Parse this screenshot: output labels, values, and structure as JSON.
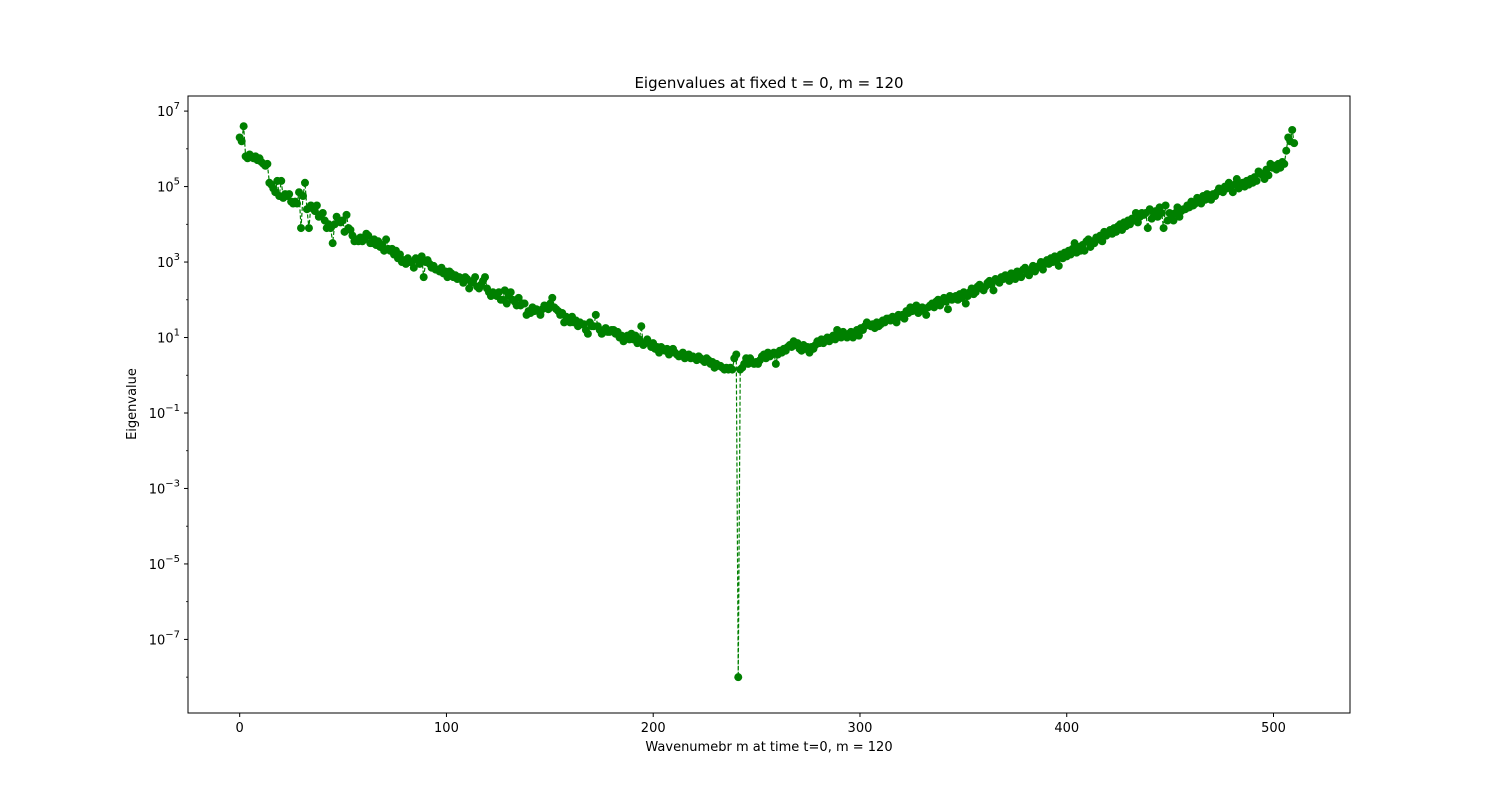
{
  "chart_data": {
    "type": "scatter",
    "title": "Eigenvalues at fixed t = 0, m = 120",
    "xlabel": "Wavenumebr m at time t=0, m = 120",
    "ylabel": "Eigenvalue",
    "xscale": "linear",
    "yscale": "log",
    "xlim": [
      -25,
      537
    ],
    "ylim_log10": [
      -8.95,
      7.4
    ],
    "x_ticks": [
      0,
      100,
      200,
      300,
      400,
      500
    ],
    "x_tick_labels": [
      "0",
      "100",
      "200",
      "300",
      "400",
      "500"
    ],
    "y_tick_exponents": [
      -7,
      -5,
      -3,
      -1,
      1,
      3,
      5,
      7
    ],
    "y_tick_labels": [
      "10",
      "10",
      "10",
      "10",
      "10",
      "10",
      "10",
      "10"
    ],
    "y_tick_label_exponents": [
      "−7",
      "−5",
      "−3",
      "−1",
      "1",
      "3",
      "5",
      "7"
    ],
    "grid": false,
    "legend": "none",
    "marker": "circle",
    "line_style": "dashed",
    "color": "#008000",
    "series": [
      {
        "x_start": 0,
        "x_end": 510,
        "log10_values": [
          6.3,
          6.2,
          6.6,
          5.8,
          5.75,
          5.85,
          5.8,
          5.75,
          5.8,
          5.7,
          5.75,
          5.65,
          5.6,
          5.55,
          5.6,
          5.1,
          5.05,
          4.95,
          4.85,
          5.15,
          4.75,
          5.15,
          4.7,
          4.8,
          4.75,
          4.8,
          4.6,
          4.55,
          4.6,
          4.55,
          4.85,
          3.9,
          4.75,
          5.1,
          4.4,
          3.9,
          4.5,
          4.45,
          4.35,
          4.5,
          4.2,
          4.25,
          4.3,
          4.1,
          3.9,
          4.0,
          3.9,
          3.5,
          4.0,
          4.2,
          4.1,
          4.05,
          4.1,
          3.8,
          4.25,
          3.9,
          3.85,
          3.7,
          3.55,
          3.6,
          3.55,
          3.65,
          3.55,
          3.6,
          3.75,
          3.7,
          3.5,
          3.5,
          3.6,
          3.45,
          3.55,
          3.4,
          3.45,
          3.3,
          3.6,
          3.35,
          3.3,
          3.35,
          3.2,
          3.3,
          3.1,
          3.2,
          3.0,
          3.05,
          2.95,
          3.1,
          3.0,
          3.0,
          2.85,
          3.1,
          3.05,
          2.95,
          3.15,
          2.6,
          3.0,
          3.05,
          2.95,
          2.85,
          2.9,
          2.8,
          2.8,
          2.75,
          2.85,
          2.7,
          2.75,
          2.6,
          2.75,
          2.7,
          2.6,
          2.65,
          2.55,
          2.6,
          2.55,
          2.45,
          2.6,
          2.55,
          2.3,
          2.45,
          2.5,
          2.6,
          2.35,
          2.3,
          2.4,
          2.5,
          2.6,
          2.3,
          2.2,
          2.1,
          2.2,
          2.15,
          2.1,
          2.2,
          2.0,
          2.0,
          2.25,
          1.9,
          2.1,
          2.2,
          2.0,
          1.95,
          1.85,
          2.05,
          1.85,
          1.9,
          1.9,
          1.6,
          1.7,
          1.65,
          1.8,
          1.7,
          1.75,
          1.7,
          1.6,
          1.75,
          1.85,
          1.8,
          1.75,
          1.9,
          2.05,
          1.8,
          1.75,
          1.7,
          1.6,
          1.65,
          1.4,
          1.55,
          1.5,
          1.4,
          1.55,
          1.4,
          1.45,
          1.3,
          1.4,
          1.35,
          1.35,
          1.2,
          1.1,
          1.4,
          1.3,
          1.3,
          1.6,
          1.3,
          1.2,
          1.1,
          1.15,
          1.25,
          1.15,
          1.15,
          1.2,
          1.2,
          1.1,
          1.15,
          1.0,
          1.05,
          0.9,
          1.0,
          1.05,
          0.95,
          1.1,
          0.95,
          1.05,
          0.85,
          0.95,
          1.3,
          0.8,
          0.85,
          0.95,
          0.85,
          0.75,
          0.85,
          0.7,
          0.75,
          0.6,
          0.75,
          0.7,
          0.65,
          0.7,
          0.55,
          0.6,
          0.7,
          0.6,
          0.55,
          0.5,
          0.55,
          0.6,
          0.45,
          0.5,
          0.55,
          0.45,
          0.5,
          0.45,
          0.4,
          0.5,
          0.45,
          0.4,
          0.35,
          0.45,
          0.4,
          0.3,
          0.35,
          0.2,
          0.3,
          0.25,
          0.25,
          0.2,
          0.15,
          0.2,
          0.15,
          0.2,
          0.15,
          0.45,
          0.55,
          -8.0,
          0.15,
          0.2,
          0.3,
          0.45,
          0.3,
          0.45,
          0.35,
          0.3,
          0.35,
          0.3,
          0.4,
          0.5,
          0.55,
          0.45,
          0.6,
          0.5,
          0.55,
          0.6,
          0.3,
          0.55,
          0.65,
          0.6,
          0.7,
          0.65,
          0.75,
          0.8,
          0.75,
          0.9,
          0.8,
          0.85,
          0.7,
          0.65,
          0.8,
          0.7,
          0.75,
          0.6,
          0.75,
          0.7,
          0.8,
          0.9,
          0.85,
          0.95,
          0.85,
          0.95,
          1.0,
          0.9,
          1.0,
          1.05,
          0.95,
          1.2,
          1.05,
          1.0,
          1.15,
          1.05,
          1.0,
          1.1,
          1.15,
          1.0,
          1.1,
          1.2,
          1.05,
          1.25,
          1.2,
          1.3,
          1.4,
          1.35,
          1.3,
          1.35,
          1.25,
          1.4,
          1.3,
          1.35,
          1.45,
          1.4,
          1.5,
          1.5,
          1.45,
          1.55,
          1.5,
          1.4,
          1.6,
          1.55,
          1.6,
          1.5,
          1.7,
          1.65,
          1.8,
          1.7,
          1.75,
          1.85,
          1.65,
          1.7,
          1.8,
          1.75,
          1.6,
          1.8,
          1.85,
          1.9,
          1.8,
          1.95,
          2.0,
          1.85,
          1.95,
          2.05,
          1.95,
          1.75,
          2.1,
          2.0,
          2.05,
          2.1,
          2.0,
          2.15,
          2.05,
          2.2,
          1.9,
          2.1,
          2.2,
          2.3,
          2.15,
          2.2,
          2.35,
          2.4,
          2.3,
          2.25,
          2.35,
          2.45,
          2.5,
          2.4,
          2.25,
          2.55,
          2.5,
          2.45,
          2.6,
          2.55,
          2.65,
          2.6,
          2.5,
          2.7,
          2.65,
          2.55,
          2.75,
          2.7,
          2.6,
          2.8,
          2.85,
          2.7,
          2.65,
          2.8,
          2.9,
          2.75,
          2.85,
          2.9,
          3.0,
          2.8,
          2.95,
          3.05,
          2.95,
          3.1,
          3.0,
          3.15,
          3.05,
          2.9,
          3.2,
          3.1,
          3.25,
          3.15,
          3.3,
          3.2,
          3.35,
          3.5,
          3.25,
          3.4,
          3.3,
          3.45,
          3.3,
          3.55,
          3.6,
          3.4,
          3.55,
          3.5,
          3.65,
          3.6,
          3.7,
          3.55,
          3.8,
          3.7,
          3.75,
          3.85,
          3.75,
          3.9,
          3.8,
          3.95,
          4.0,
          3.85,
          4.05,
          3.95,
          4.1,
          4.0,
          4.15,
          4.1,
          4.3,
          4.05,
          4.2,
          4.3,
          4.25,
          4.3,
          3.9,
          4.4,
          4.15,
          4.3,
          4.35,
          4.2,
          4.45,
          4.3,
          3.9,
          4.5,
          4.1,
          4.3,
          4.2,
          4.1,
          4.3,
          4.45,
          4.2,
          4.35,
          4.4,
          4.4,
          4.5,
          4.45,
          4.6,
          4.5,
          4.55,
          4.7,
          4.6,
          4.55,
          4.75,
          4.65,
          4.8,
          4.7,
          4.65,
          4.8,
          4.75,
          4.85,
          4.95,
          4.9,
          4.85,
          5.0,
          4.95,
          5.1,
          5.0,
          4.85,
          5.05,
          5.2,
          4.95,
          5.05,
          5.1,
          5.0,
          5.15,
          5.05,
          5.2,
          5.1,
          5.25,
          5.15,
          5.4,
          5.35,
          5.3,
          5.2,
          5.45,
          5.3,
          5.6,
          5.5,
          5.55,
          5.45,
          5.6,
          5.5,
          5.65,
          5.6,
          5.95,
          6.3,
          6.2,
          6.5,
          6.15
        ]
      }
    ]
  }
}
